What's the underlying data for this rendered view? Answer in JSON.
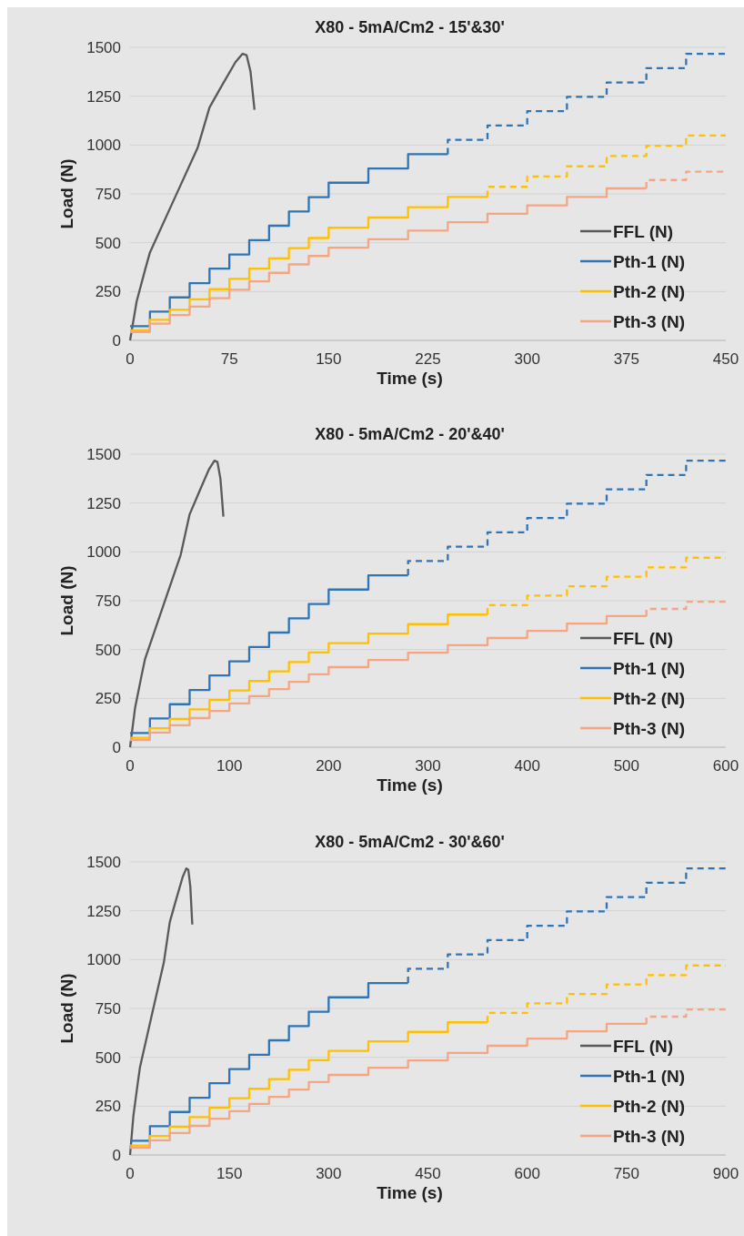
{
  "chart_data": [
    {
      "type": "step",
      "title": "X80 - 5mA/Cm2 - 15'&30'",
      "xlabel": "Time (s)",
      "ylabel": "Load (N)",
      "xlim": [
        0,
        450
      ],
      "xticks": [
        0,
        75,
        150,
        225,
        300,
        375,
        450
      ],
      "ylim": [
        0,
        1500
      ],
      "yticks": [
        0,
        250,
        500,
        750,
        1000,
        1250,
        1500
      ],
      "grid": "y",
      "legend": "bottom right",
      "series": [
        {
          "name": "FFL (N)",
          "type": "line",
          "color": "#595959",
          "line_style": "solid",
          "x": [
            0,
            5,
            11.5,
            15,
            33,
            51,
            60,
            69,
            79.5,
            85,
            88,
            91,
            94
          ],
          "values": [
            0,
            200,
            365,
            450,
            718,
            985,
            1192,
            1300,
            1423,
            1467,
            1460,
            1375,
            1180
          ]
        },
        {
          "name": "Pth-1 (N)",
          "color": "#2e75b6",
          "line_style": "solid",
          "x": [
            0,
            15,
            30,
            45,
            60,
            75,
            90,
            105,
            120,
            135,
            150,
            180,
            210,
            240
          ],
          "values": [
            73,
            73,
            147,
            220,
            293,
            367,
            440,
            513,
            587,
            660,
            733,
            807,
            880,
            953
          ]
        },
        {
          "name": "Pth-2 (N)",
          "color": "#ffc000",
          "line_style": "solid",
          "x": [
            0,
            15,
            30,
            45,
            60,
            75,
            90,
            105,
            120,
            135,
            150,
            180,
            210,
            240,
            270
          ],
          "values": [
            52,
            52,
            105,
            157,
            210,
            262,
            315,
            367,
            420,
            472,
            524,
            577,
            629,
            682,
            734
          ]
        },
        {
          "name": "Pth-3 (N)",
          "color": "#f4a582",
          "line_style": "solid",
          "x": [
            0,
            15,
            30,
            45,
            60,
            75,
            90,
            105,
            120,
            135,
            150,
            180,
            210,
            240,
            270,
            300,
            330,
            360,
            390
          ],
          "values": [
            43,
            43,
            86,
            130,
            173,
            216,
            259,
            302,
            346,
            389,
            432,
            475,
            518,
            562,
            605,
            648,
            691,
            734,
            778
          ]
        },
        {
          "color": "#2e75b6",
          "line_style": "dashed",
          "x": [
            240,
            270,
            300,
            330,
            360,
            390,
            420,
            450
          ],
          "values": [
            953,
            1027,
            1100,
            1173,
            1247,
            1320,
            1393,
            1467
          ]
        },
        {
          "color": "#ffc000",
          "line_style": "dashed",
          "x": [
            270,
            300,
            330,
            360,
            390,
            420,
            450
          ],
          "values": [
            734,
            786,
            839,
            891,
            944,
            996,
            1049
          ]
        },
        {
          "color": "#f4a582",
          "line_style": "dashed",
          "x": [
            390,
            420,
            450
          ],
          "values": [
            778,
            821,
            864
          ]
        }
      ]
    },
    {
      "type": "step",
      "title": "X80 - 5mA/Cm2 - 20'&40'",
      "xlabel": "Time (s)",
      "ylabel": "Load (N)",
      "xlim": [
        0,
        600
      ],
      "xticks": [
        0,
        100,
        200,
        300,
        400,
        500,
        600
      ],
      "ylim": [
        0,
        1500
      ],
      "yticks": [
        0,
        250,
        500,
        750,
        1000,
        1250,
        1500
      ],
      "grid": "y",
      "legend": "bottom right",
      "series": [
        {
          "name": "FFL (N)",
          "type": "line",
          "color": "#595959",
          "line_style": "solid",
          "x": [
            0,
            5,
            11.5,
            15,
            33,
            51,
            60,
            69,
            79.5,
            85,
            88,
            91,
            94
          ],
          "values": [
            0,
            200,
            365,
            450,
            718,
            985,
            1192,
            1300,
            1423,
            1467,
            1460,
            1375,
            1180
          ]
        },
        {
          "name": "Pth-1 (N)",
          "color": "#2e75b6",
          "line_style": "solid",
          "x": [
            0,
            20,
            40,
            60,
            80,
            100,
            120,
            140,
            160,
            180,
            200,
            240,
            280
          ],
          "values": [
            73,
            73,
            147,
            220,
            293,
            367,
            440,
            513,
            587,
            660,
            733,
            807,
            880
          ]
        },
        {
          "name": "Pth-2 (N)",
          "color": "#ffc000",
          "line_style": "solid",
          "x": [
            0,
            20,
            40,
            60,
            80,
            100,
            120,
            140,
            160,
            180,
            200,
            240,
            280,
            320,
            360
          ],
          "values": [
            48,
            48,
            97,
            145,
            194,
            242,
            291,
            339,
            388,
            436,
            485,
            533,
            582,
            630,
            679
          ]
        },
        {
          "name": "Pth-3 (N)",
          "color": "#f4a582",
          "line_style": "solid",
          "x": [
            0,
            20,
            40,
            60,
            80,
            100,
            120,
            140,
            160,
            180,
            200,
            240,
            280,
            320,
            360,
            400,
            440,
            480,
            520
          ],
          "values": [
            37,
            37,
            75,
            112,
            149,
            186,
            224,
            261,
            298,
            335,
            373,
            410,
            447,
            484,
            522,
            559,
            596,
            633,
            671
          ]
        },
        {
          "color": "#2e75b6",
          "line_style": "dashed",
          "x": [
            280,
            320,
            360,
            400,
            440,
            480,
            520,
            560,
            600
          ],
          "values": [
            880,
            953,
            1027,
            1100,
            1173,
            1247,
            1320,
            1393,
            1467
          ]
        },
        {
          "color": "#ffc000",
          "line_style": "dashed",
          "x": [
            360,
            400,
            440,
            480,
            520,
            560,
            600
          ],
          "values": [
            679,
            727,
            776,
            824,
            873,
            921,
            970
          ]
        },
        {
          "color": "#f4a582",
          "line_style": "dashed",
          "x": [
            520,
            560,
            600
          ],
          "values": [
            671,
            708,
            745
          ]
        }
      ]
    },
    {
      "type": "step",
      "title": "X80 - 5mA/Cm2 - 30'&60'",
      "xlabel": "Time (s)",
      "ylabel": "Load (N)",
      "xlim": [
        0,
        900
      ],
      "xticks": [
        0,
        150,
        300,
        450,
        600,
        750,
        900
      ],
      "ylim": [
        0,
        1500
      ],
      "yticks": [
        0,
        250,
        500,
        750,
        1000,
        1250,
        1500
      ],
      "grid": "y",
      "legend": "bottom right",
      "series": [
        {
          "name": "FFL (N)",
          "type": "line",
          "color": "#595959",
          "line_style": "solid",
          "x": [
            0,
            5,
            11.5,
            15,
            33,
            51,
            60,
            69,
            79.5,
            85,
            88,
            91,
            94
          ],
          "values": [
            0,
            200,
            365,
            450,
            718,
            985,
            1192,
            1300,
            1423,
            1467,
            1460,
            1375,
            1180
          ]
        },
        {
          "name": "Pth-1 (N)",
          "color": "#2e75b6",
          "line_style": "solid",
          "x": [
            0,
            30,
            60,
            90,
            120,
            150,
            180,
            210,
            240,
            270,
            300,
            360,
            420
          ],
          "values": [
            73,
            73,
            147,
            220,
            293,
            367,
            440,
            513,
            587,
            660,
            733,
            807,
            880
          ]
        },
        {
          "name": "Pth-2 (N)",
          "color": "#ffc000",
          "line_style": "solid",
          "x": [
            0,
            30,
            60,
            90,
            120,
            150,
            180,
            210,
            240,
            270,
            300,
            360,
            420,
            480,
            540
          ],
          "values": [
            48,
            48,
            97,
            145,
            194,
            242,
            291,
            339,
            388,
            436,
            485,
            533,
            582,
            630,
            679
          ]
        },
        {
          "name": "Pth-3 (N)",
          "color": "#f4a582",
          "line_style": "solid",
          "x": [
            0,
            30,
            60,
            90,
            120,
            150,
            180,
            210,
            240,
            270,
            300,
            360,
            420,
            480,
            540,
            600,
            660,
            720,
            780
          ],
          "values": [
            37,
            37,
            75,
            112,
            149,
            186,
            224,
            261,
            298,
            335,
            373,
            410,
            447,
            484,
            522,
            559,
            596,
            633,
            671
          ]
        },
        {
          "color": "#2e75b6",
          "line_style": "dashed",
          "x": [
            420,
            480,
            540,
            600,
            660,
            720,
            780,
            840,
            900
          ],
          "values": [
            880,
            953,
            1027,
            1100,
            1173,
            1247,
            1320,
            1393,
            1467
          ]
        },
        {
          "color": "#ffc000",
          "line_style": "dashed",
          "x": [
            540,
            600,
            660,
            720,
            780,
            840,
            900
          ],
          "values": [
            679,
            727,
            776,
            824,
            873,
            921,
            970
          ]
        },
        {
          "color": "#f4a582",
          "line_style": "dashed",
          "x": [
            780,
            840,
            900
          ],
          "values": [
            671,
            708,
            745
          ]
        }
      ]
    }
  ]
}
